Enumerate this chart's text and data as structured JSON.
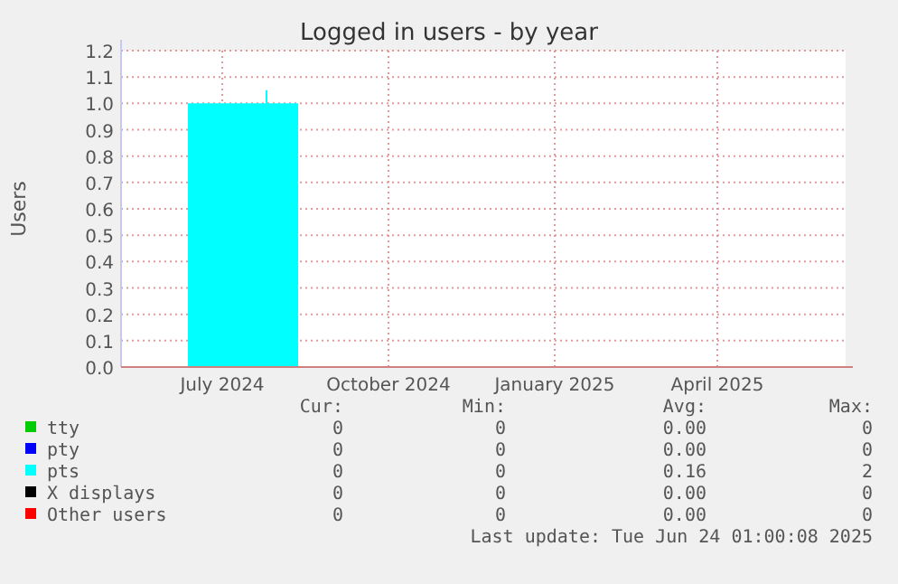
{
  "chart_data": {
    "type": "line",
    "title": "Logged in users - by year",
    "ylabel": "Users",
    "xlim": [
      "2024-05-06",
      "2025-06-11"
    ],
    "xticks": [
      {
        "value": "2024-07-01",
        "label": "July 2024"
      },
      {
        "value": "2024-10-01",
        "label": "October 2024"
      },
      {
        "value": "2025-01-01",
        "label": "January 2025"
      },
      {
        "value": "2025-04-01",
        "label": "April 2025"
      }
    ],
    "ylim": [
      0,
      1.2
    ],
    "yticks": [
      {
        "value": 0,
        "label": "0.0"
      },
      0.1,
      0.2,
      0.3,
      0.4,
      0.5,
      0.6,
      0.7,
      0.8,
      0.9,
      {
        "value": 1,
        "label": "1.0"
      },
      1.1,
      1.2
    ],
    "grid": true,
    "legend": "bottom",
    "series": [
      {
        "name": "tty",
        "color": "#00cc00"
      },
      {
        "name": "pty",
        "color": "#0000ff"
      },
      {
        "name": "pts",
        "type": "area",
        "color": "#00ffff",
        "x": [
          "2024-05-06",
          "2024-06-12",
          "2024-07-25",
          "2024-07-26",
          "2024-08-12",
          "2025-06-11"
        ],
        "values": [
          0,
          1,
          1.05,
          1,
          0,
          0
        ]
      },
      {
        "name": "X displays",
        "color": "#000000"
      },
      {
        "name": "Other users",
        "color": "#ff0000"
      }
    ],
    "annotations": [
      "Cur:",
      "Min:",
      "Avg:",
      "Max:",
      "0",
      "0",
      "0.00",
      "0",
      "0",
      "0",
      "0.00",
      "0",
      "0",
      "0",
      "0.16",
      "2",
      "0",
      "0",
      "0.00",
      "0",
      "0",
      "0",
      "0.00",
      "0",
      "Last update: Tue Jun 24 01:00:08 2025"
    ]
  }
}
